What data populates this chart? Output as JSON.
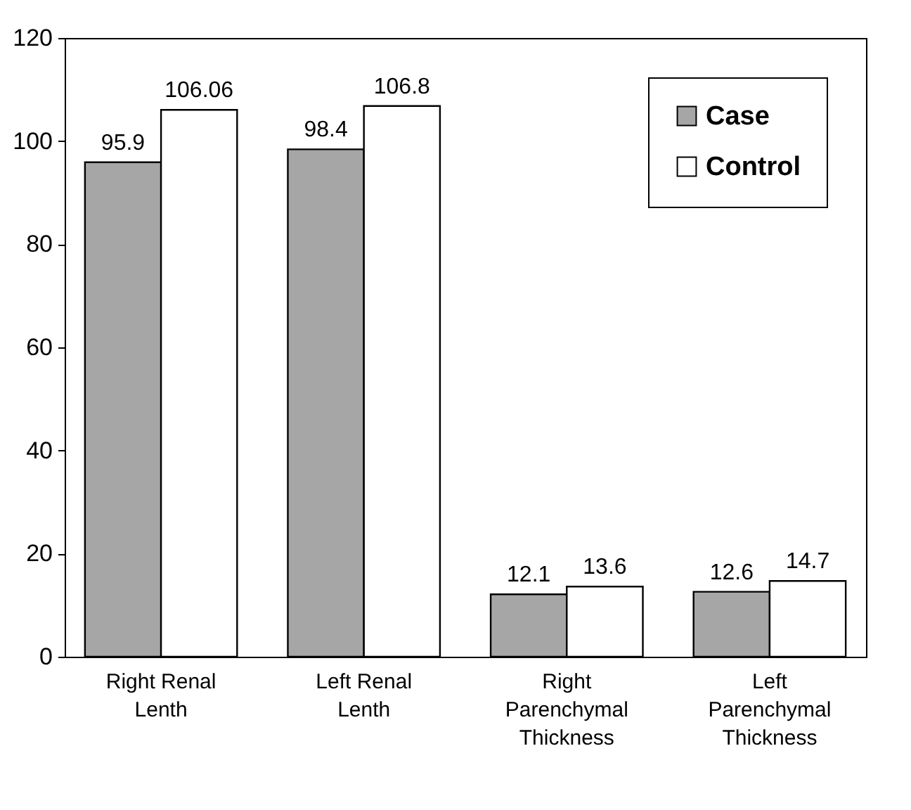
{
  "chart_data": {
    "type": "bar",
    "categories": [
      "Right Renal Lenth",
      "Left Renal Lenth",
      "Right Parenchymal Thickness",
      "Left Parenchymal Thickness"
    ],
    "series": [
      {
        "name": "Case",
        "color": "#a6a6a6",
        "values": [
          95.9,
          98.4,
          12.1,
          12.6
        ]
      },
      {
        "name": "Control",
        "color": "#ffffff",
        "values": [
          106.06,
          106.8,
          13.6,
          14.7
        ]
      }
    ],
    "ylim": [
      0,
      120
    ],
    "yticks": [
      0,
      20,
      40,
      60,
      80,
      100,
      120
    ],
    "grid": false,
    "legend": "top right",
    "data_labels": true
  }
}
